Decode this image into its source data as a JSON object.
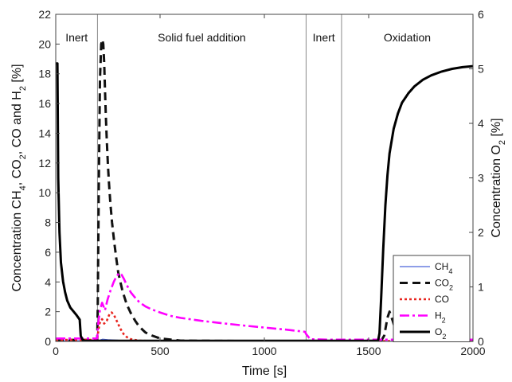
{
  "chart_data": {
    "type": "line",
    "xlabel": "Time [s]",
    "ylabel_left_html": "Concentration CH<sub>4</sub>, CO<sub>2</sub>, CO and H<sub>2</sub> [%]",
    "ylabel_right_html": "Concentration O<sub>2</sub> [%]",
    "xlim": [
      0,
      2000
    ],
    "ylim_left": [
      0,
      22
    ],
    "ylim_right": [
      0,
      6
    ],
    "x_ticks": [
      0,
      500,
      1000,
      1500,
      2000
    ],
    "y_ticks_left": [
      0,
      2,
      4,
      6,
      8,
      10,
      12,
      14,
      16,
      18,
      20,
      22
    ],
    "y_ticks_right": [
      0,
      1,
      2,
      3,
      4,
      5,
      6
    ],
    "grid": false,
    "legend_position": "bottom-right",
    "phase_boundaries": [
      200,
      1200,
      1370
    ],
    "phases": [
      {
        "label": "Inert",
        "x_center": 100
      },
      {
        "label": "Solid fuel addition",
        "x_center": 700
      },
      {
        "label": "Inert",
        "x_center": 1285
      },
      {
        "label": "Oxidation",
        "x_center": 1685
      }
    ],
    "series": [
      {
        "name": "CH<sub>4</sub>",
        "axis": "left",
        "color": "#4a63d9",
        "dash": "none",
        "width": 1.2,
        "x": [
          0,
          200,
          210,
          225,
          250,
          300,
          400,
          600,
          1000,
          1200,
          1400,
          1600,
          2000
        ],
        "y": [
          0.05,
          0.05,
          0.08,
          0.15,
          0.12,
          0.08,
          0.05,
          0.03,
          0.02,
          0.02,
          0.01,
          0.01,
          0.01
        ]
      },
      {
        "name": "CO<sub>2</sub>",
        "axis": "left",
        "color": "#111111",
        "dash": "10 6",
        "width": 3,
        "x": [
          0,
          50,
          100,
          150,
          199,
          201,
          206,
          212,
          218,
          224,
          228,
          232,
          236,
          240,
          245,
          250,
          255,
          262,
          270,
          280,
          290,
          300,
          320,
          340,
          360,
          380,
          400,
          430,
          460,
          500,
          600,
          800,
          1000,
          1200,
          1400,
          1560,
          1575,
          1590,
          1600,
          1615,
          1630,
          1660,
          1700,
          2000
        ],
        "y": [
          0.1,
          0.1,
          0.1,
          0.1,
          0.1,
          2.0,
          10.0,
          17.5,
          20.0,
          20.3,
          20.0,
          18.8,
          17.0,
          15.2,
          13.4,
          11.9,
          10.7,
          9.3,
          8.0,
          6.7,
          5.6,
          4.6,
          3.4,
          2.5,
          1.9,
          1.4,
          1.0,
          0.6,
          0.4,
          0.2,
          0.05,
          0.03,
          0.02,
          0.02,
          0.02,
          0.03,
          0.4,
          1.6,
          2.0,
          1.4,
          0.7,
          0.2,
          0.05,
          0.05
        ]
      },
      {
        "name": "CO",
        "axis": "left",
        "color": "#e8251f",
        "dash": "3 3",
        "width": 2.6,
        "x": [
          0,
          100,
          199,
          201,
          210,
          222,
          232,
          245,
          258,
          268,
          280,
          295,
          310,
          325,
          340,
          360,
          400,
          500,
          1000,
          2000
        ],
        "y": [
          0.1,
          0.1,
          0.1,
          0.4,
          1.2,
          1.5,
          1.2,
          1.4,
          1.85,
          1.95,
          1.75,
          1.3,
          0.85,
          0.5,
          0.3,
          0.15,
          0.05,
          0.02,
          0.02,
          0.02
        ]
      },
      {
        "name": "H<sub>2</sub>",
        "axis": "left",
        "color": "#ff00ff",
        "dash": "12 4 3 4",
        "width": 2.6,
        "x": [
          0,
          100,
          199,
          202,
          212,
          222,
          228,
          236,
          248,
          262,
          278,
          292,
          305,
          315,
          325,
          340,
          360,
          380,
          400,
          430,
          460,
          500,
          550,
          600,
          700,
          800,
          900,
          1000,
          1100,
          1195,
          1200,
          1220,
          1300,
          1400,
          1500,
          1600,
          2000
        ],
        "y": [
          0.2,
          0.2,
          0.2,
          1.0,
          2.1,
          2.6,
          2.4,
          2.1,
          2.8,
          3.4,
          4.0,
          4.4,
          4.6,
          4.5,
          4.25,
          3.8,
          3.3,
          2.95,
          2.65,
          2.35,
          2.15,
          1.95,
          1.72,
          1.58,
          1.38,
          1.22,
          1.07,
          0.93,
          0.8,
          0.65,
          0.5,
          0.15,
          0.12,
          0.12,
          0.12,
          0.12,
          0.12
        ]
      },
      {
        "name": "O<sub>2</sub>",
        "axis": "right",
        "color": "#000000",
        "dash": "none",
        "width": 3,
        "x": [
          0,
          3,
          8,
          12,
          18,
          25,
          35,
          45,
          55,
          70,
          85,
          100,
          115,
          120,
          130,
          140,
          200,
          500,
          1000,
          1200,
          1400,
          1545,
          1552,
          1560,
          1570,
          1580,
          1590,
          1600,
          1620,
          1640,
          1660,
          1690,
          1720,
          1760,
          1800,
          1850,
          1900,
          1950,
          2000
        ],
        "y": [
          5.1,
          5.1,
          5.1,
          3.0,
          2.0,
          1.45,
          1.1,
          0.9,
          0.75,
          0.62,
          0.55,
          0.48,
          0.4,
          0.1,
          0.02,
          0.01,
          0.01,
          0.01,
          0.01,
          0.01,
          0.01,
          0.01,
          0.15,
          0.8,
          1.7,
          2.5,
          3.05,
          3.45,
          3.9,
          4.18,
          4.38,
          4.55,
          4.68,
          4.8,
          4.88,
          4.95,
          5.0,
          5.03,
          5.05
        ]
      }
    ]
  }
}
